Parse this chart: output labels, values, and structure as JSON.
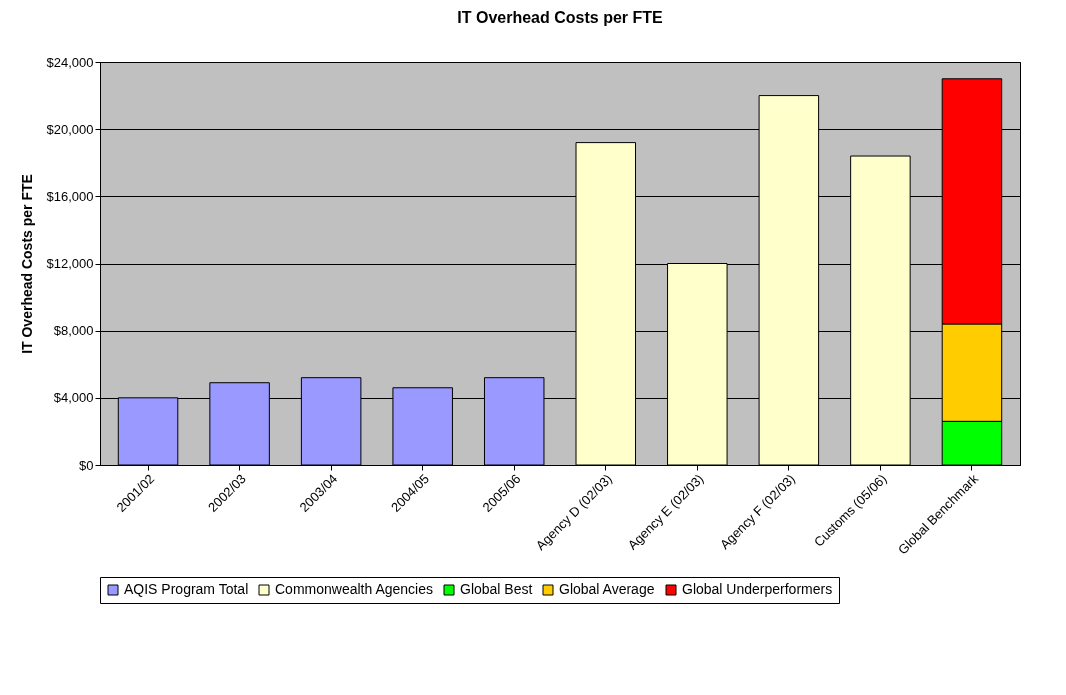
{
  "chart_data": {
    "type": "bar",
    "title": "IT Overhead Costs per FTE",
    "ylabel": "IT Overhead Costs per FTE",
    "stacked": true,
    "categories": [
      "2001/02",
      "2002/03",
      "2003/04",
      "2004/05",
      "2005/06",
      "Agency D (02/03)",
      "Agency E (02/03)",
      "Agency F (02/03)",
      "Customs (05/06)",
      "Global Benchmark"
    ],
    "series": [
      {
        "name": "AQIS Program Total",
        "color": "#9999ff",
        "values": [
          4000,
          4900,
          5200,
          4600,
          5200,
          null,
          null,
          null,
          null,
          null
        ]
      },
      {
        "name": "Commonwealth Agencies",
        "color": "#ffffcc",
        "values": [
          null,
          null,
          null,
          null,
          null,
          19200,
          12000,
          22000,
          18400,
          null
        ]
      },
      {
        "name": "Global Best",
        "color": "#00ff00",
        "values": [
          null,
          null,
          null,
          null,
          null,
          null,
          null,
          null,
          null,
          2600
        ]
      },
      {
        "name": "Global Average",
        "color": "#ffcc00",
        "values": [
          null,
          null,
          null,
          null,
          null,
          null,
          null,
          null,
          null,
          5800
        ]
      },
      {
        "name": "Global Underperformers",
        "color": "#ff0000",
        "values": [
          null,
          null,
          null,
          null,
          null,
          null,
          null,
          null,
          null,
          14600
        ]
      }
    ],
    "ylim": [
      0,
      24000
    ],
    "yticks": [
      {
        "value": 0,
        "label": "$0"
      },
      {
        "value": 4000,
        "label": "$4,000"
      },
      {
        "value": 8000,
        "label": "$8,000"
      },
      {
        "value": 12000,
        "label": "$12,000"
      },
      {
        "value": 16000,
        "label": "$16,000"
      },
      {
        "value": 20000,
        "label": "$20,000"
      },
      {
        "value": 24000,
        "label": "$24,000"
      }
    ],
    "grid": "y",
    "legend": "bottom"
  }
}
